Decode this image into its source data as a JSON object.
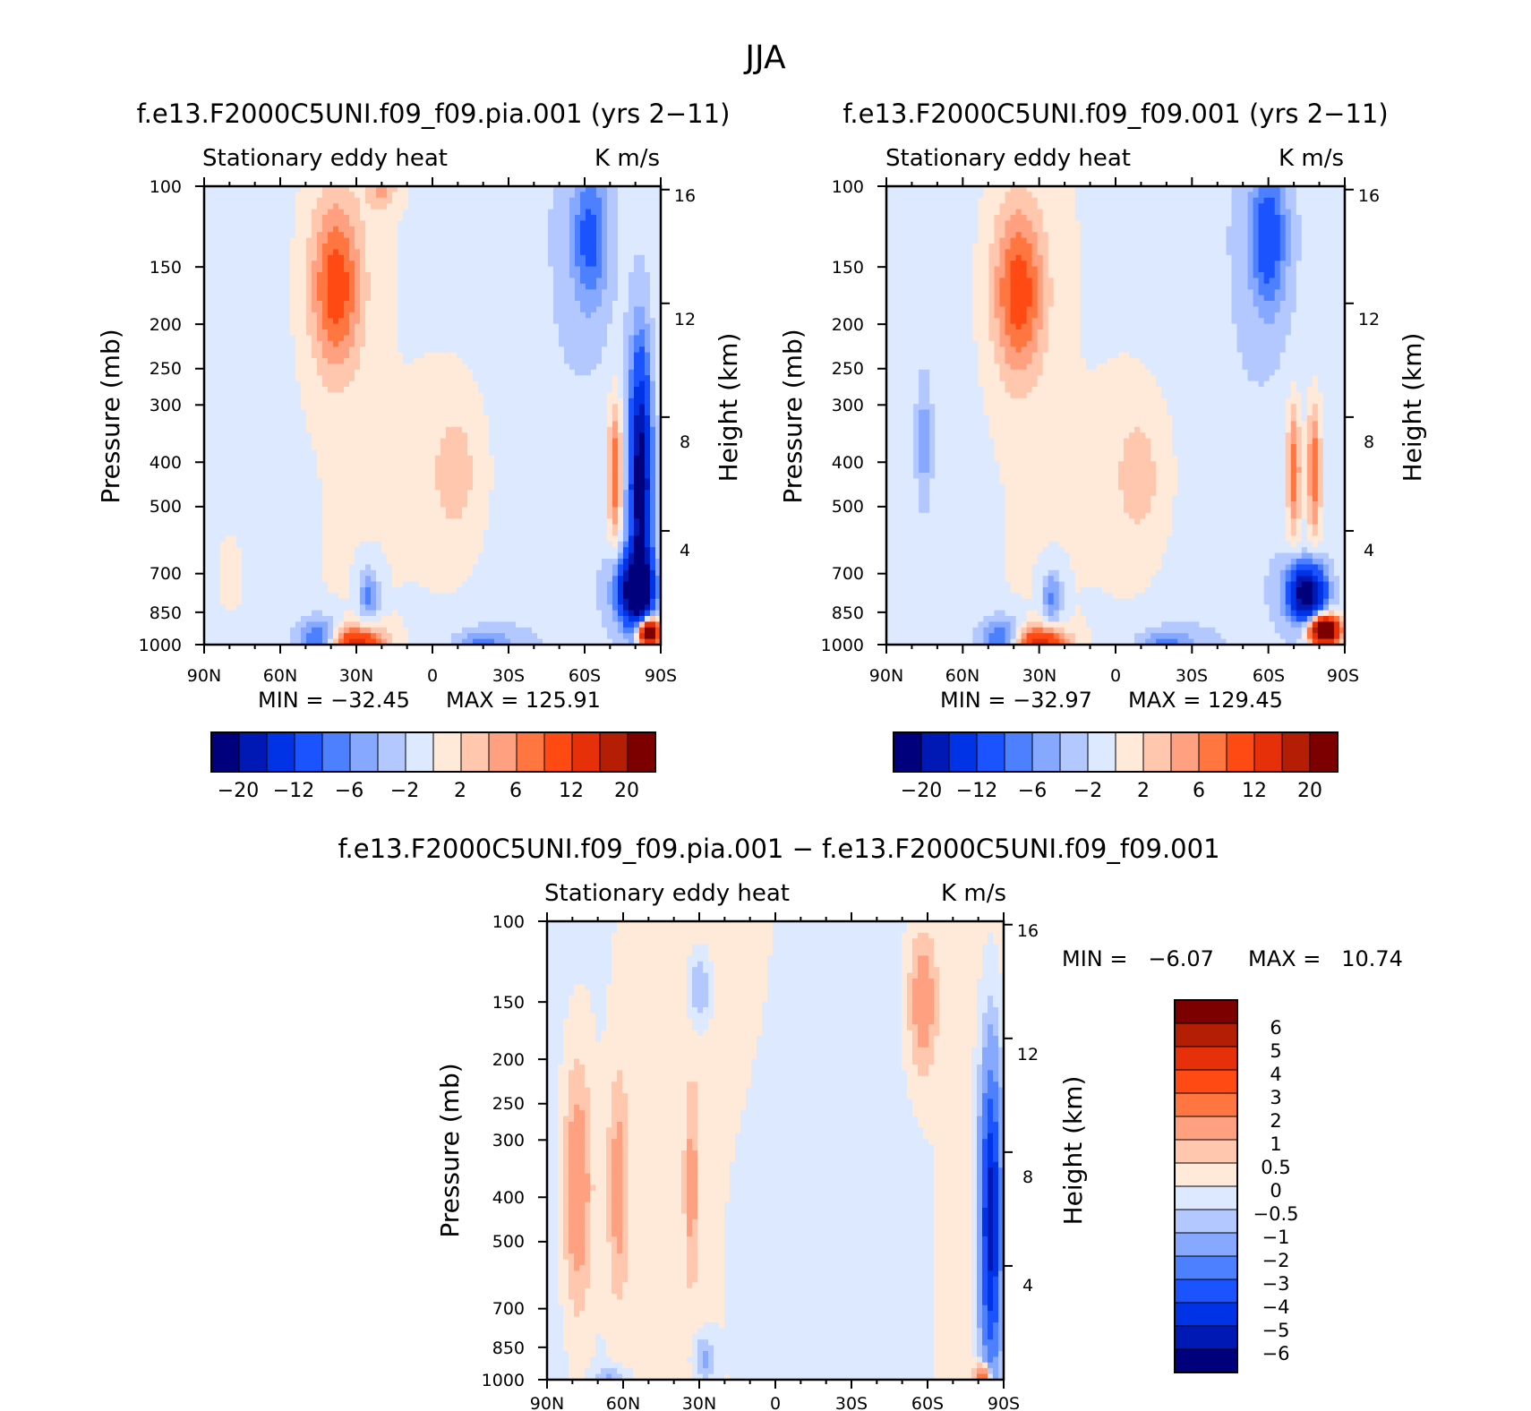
{
  "figure": {
    "title": "JJA"
  },
  "colors": {
    "main": [
      "#00007d",
      "#0019b4",
      "#0033e6",
      "#1a53ff",
      "#4c80ff",
      "#86a8ff",
      "#b2c8ff",
      "#dce9ff",
      "#ffe9d9",
      "#ffc7ae",
      "#ffa180",
      "#ff7640",
      "#ff4a14",
      "#e6300a",
      "#b41e05",
      "#7d0000"
    ],
    "diff": [
      "#00007d",
      "#0019b4",
      "#0033e6",
      "#1a53ff",
      "#4c80ff",
      "#86a8ff",
      "#b2c8ff",
      "#dce9ff",
      "#ffe9d9",
      "#ffc7ae",
      "#ffa180",
      "#ff7640",
      "#ff4a14",
      "#e6300a",
      "#b41e05",
      "#7d0000"
    ]
  },
  "chart_data": [
    {
      "id": "panel-pia",
      "type": "heatmap",
      "title": "f.e13.F2000C5UNI.f09_f09.pia.001 (yrs 2−11)",
      "left_label": "Stationary eddy heat",
      "right_label": "K m/s",
      "ylabel": "Pressure (mb)",
      "ylabel_right": "Height (km)",
      "x_ticks": [
        "90N",
        "60N",
        "30N",
        "0",
        "30S",
        "60S",
        "90S"
      ],
      "y_ticks": [
        "100",
        "150",
        "200",
        "250",
        "300",
        "400",
        "500",
        "700",
        "850",
        "1000"
      ],
      "y_ticks_right": [
        "16",
        "12",
        "8",
        "4"
      ],
      "min_label": "MIN = −32.45",
      "max_label": "MAX = 125.91",
      "colorbar_labels": [
        "−20",
        "−12",
        "−6",
        "−2",
        "2",
        "6",
        "12",
        "20"
      ],
      "blobs": [
        {
          "lat": 38,
          "p": 165,
          "sx": 7,
          "sy": 0.3,
          "v": 3.2
        },
        {
          "lat": 20,
          "p": 100,
          "sx": 4,
          "sy": 0.08,
          "v": 1.6
        },
        {
          "lat": 30,
          "p": 1000,
          "sx": 7,
          "sy": 0.06,
          "v": 5.0
        },
        {
          "lat": 45,
          "p": 980,
          "sx": 6,
          "sy": 0.08,
          "v": -3.0
        },
        {
          "lat": 25,
          "p": 780,
          "sx": 3,
          "sy": 0.1,
          "v": -2.2
        },
        {
          "lat": -20,
          "p": 990,
          "sx": 8,
          "sy": 0.05,
          "v": -1.8
        },
        {
          "lat": -62,
          "p": 130,
          "sx": 5,
          "sy": 0.25,
          "v": -2.5
        },
        {
          "lat": -72,
          "p": 420,
          "sx": 2,
          "sy": 0.25,
          "v": 3.2
        },
        {
          "lat": -82,
          "p": 450,
          "sx": 3,
          "sy": 0.45,
          "v": -7.5
        },
        {
          "lat": -80,
          "p": 760,
          "sx": 5,
          "sy": 0.12,
          "v": -8.0
        },
        {
          "lat": -85,
          "p": 940,
          "sx": 3,
          "sy": 0.05,
          "v": 11.0
        },
        {
          "lat": -10,
          "p": 420,
          "sx": 10,
          "sy": 0.35,
          "v": 1.2
        },
        {
          "lat": 80,
          "p": 700,
          "sx": 4,
          "sy": 0.15,
          "v": 1.0
        }
      ]
    },
    {
      "id": "panel-ctl",
      "type": "heatmap",
      "title": "f.e13.F2000C5UNI.f09_f09.001 (yrs 2−11)",
      "left_label": "Stationary eddy heat",
      "right_label": "K m/s",
      "ylabel": "Pressure (mb)",
      "ylabel_right": "Height (km)",
      "x_ticks": [
        "90N",
        "60N",
        "30N",
        "0",
        "30S",
        "60S",
        "90S"
      ],
      "y_ticks": [
        "100",
        "150",
        "200",
        "250",
        "300",
        "400",
        "500",
        "700",
        "850",
        "1000"
      ],
      "y_ticks_right": [
        "16",
        "12",
        "8",
        "4"
      ],
      "min_label": "MIN = −32.97",
      "max_label": "MAX = 129.45",
      "colorbar_labels": [
        "−20",
        "−12",
        "−6",
        "−2",
        "2",
        "6",
        "12",
        "20"
      ],
      "blobs": [
        {
          "lat": 38,
          "p": 170,
          "sx": 7,
          "sy": 0.3,
          "v": 3.2
        },
        {
          "lat": 30,
          "p": 1000,
          "sx": 7,
          "sy": 0.06,
          "v": 5.0
        },
        {
          "lat": 45,
          "p": 980,
          "sx": 6,
          "sy": 0.08,
          "v": -3.0
        },
        {
          "lat": 25,
          "p": 790,
          "sx": 3,
          "sy": 0.1,
          "v": -2.2
        },
        {
          "lat": -20,
          "p": 990,
          "sx": 8,
          "sy": 0.05,
          "v": -1.8
        },
        {
          "lat": -60,
          "p": 130,
          "sx": 5,
          "sy": 0.25,
          "v": -3.0
        },
        {
          "lat": -70,
          "p": 420,
          "sx": 2,
          "sy": 0.25,
          "v": 3.0
        },
        {
          "lat": -78,
          "p": 420,
          "sx": 2,
          "sy": 0.25,
          "v": 3.0
        },
        {
          "lat": -75,
          "p": 770,
          "sx": 5,
          "sy": 0.1,
          "v": -8.0
        },
        {
          "lat": -82,
          "p": 930,
          "sx": 4,
          "sy": 0.05,
          "v": 11.0
        },
        {
          "lat": 75,
          "p": 360,
          "sx": 2,
          "sy": 0.2,
          "v": -1.5
        },
        {
          "lat": -10,
          "p": 430,
          "sx": 10,
          "sy": 0.35,
          "v": 1.2
        }
      ]
    },
    {
      "id": "panel-diff",
      "type": "heatmap",
      "title": "f.e13.F2000C5UNI.f09_f09.pia.001 − f.e13.F2000C5UNI.f09_f09.001",
      "left_label": "Stationary eddy heat",
      "right_label": "K m/s",
      "ylabel": "Pressure (mb)",
      "ylabel_right": "Height (km)",
      "x_ticks": [
        "90N",
        "60N",
        "30N",
        "0",
        "30S",
        "60S",
        "90S"
      ],
      "y_ticks": [
        "100",
        "150",
        "200",
        "250",
        "300",
        "400",
        "500",
        "700",
        "850",
        "1000"
      ],
      "y_ticks_right": [
        "16",
        "12",
        "8",
        "4"
      ],
      "min_label": "MIN =   −6.07",
      "max_label": "MAX =   10.74",
      "colorbar_labels": [
        "6",
        "5",
        "4",
        "3",
        "2",
        "1",
        "0.5",
        "0",
        "−0.5",
        "−1",
        "−2",
        "−3",
        "−4",
        "−5",
        "−6"
      ],
      "blobs": [
        {
          "lat": 78,
          "p": 380,
          "sx": 4,
          "sy": 0.45,
          "v": 1.8
        },
        {
          "lat": 62,
          "p": 380,
          "sx": 3,
          "sy": 0.4,
          "v": 1.4
        },
        {
          "lat": 33,
          "p": 380,
          "sx": 2,
          "sy": 0.35,
          "v": 1.2
        },
        {
          "lat": -58,
          "p": 150,
          "sx": 4,
          "sy": 0.25,
          "v": 1.6
        },
        {
          "lat": 30,
          "p": 140,
          "sx": 3,
          "sy": 0.12,
          "v": -1.2
        },
        {
          "lat": -85,
          "p": 450,
          "sx": 3,
          "sy": 0.55,
          "v": -5.8
        },
        {
          "lat": -82,
          "p": 980,
          "sx": 2,
          "sy": 0.04,
          "v": 4.0
        },
        {
          "lat": 0,
          "p": 600,
          "sx": 20,
          "sy": 0.7,
          "v": -0.3
        },
        {
          "lat": 28,
          "p": 900,
          "sx": 3,
          "sy": 0.08,
          "v": -1.3
        },
        {
          "lat": 65,
          "p": 1000,
          "sx": 4,
          "sy": 0.04,
          "v": -1.2
        }
      ]
    }
  ]
}
